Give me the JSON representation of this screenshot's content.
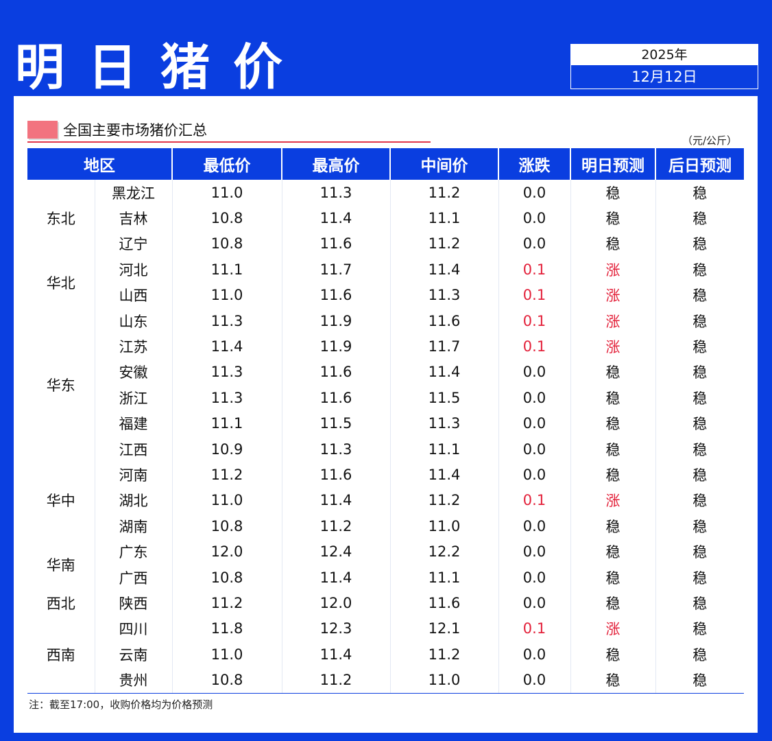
{
  "header": {
    "title": "明日猪价",
    "year": "2025年",
    "date": "12月12日"
  },
  "section": {
    "title": "全国主要市场猪价汇总",
    "unit": "（元/公斤）"
  },
  "table": {
    "columns": [
      "地区",
      "最低价",
      "最高价",
      "中间价",
      "涨跌",
      "明日预测",
      "后日预测"
    ],
    "groups": [
      {
        "region": "东北",
        "rows": [
          {
            "province": "黑龙江",
            "low": "11.0",
            "high": "11.3",
            "mid": "11.2",
            "change": "0.0",
            "tomorrow": "稳",
            "after": "稳",
            "up": false
          },
          {
            "province": "吉林",
            "low": "10.8",
            "high": "11.4",
            "mid": "11.1",
            "change": "0.0",
            "tomorrow": "稳",
            "after": "稳",
            "up": false
          },
          {
            "province": "辽宁",
            "low": "10.8",
            "high": "11.6",
            "mid": "11.2",
            "change": "0.0",
            "tomorrow": "稳",
            "after": "稳",
            "up": false
          }
        ]
      },
      {
        "region": "华北",
        "rows": [
          {
            "province": "河北",
            "low": "11.1",
            "high": "11.7",
            "mid": "11.4",
            "change": "0.1",
            "tomorrow": "涨",
            "after": "稳",
            "up": true
          },
          {
            "province": "山西",
            "low": "11.0",
            "high": "11.6",
            "mid": "11.3",
            "change": "0.1",
            "tomorrow": "涨",
            "after": "稳",
            "up": true
          }
        ]
      },
      {
        "region": "华东",
        "rows": [
          {
            "province": "山东",
            "low": "11.3",
            "high": "11.9",
            "mid": "11.6",
            "change": "0.1",
            "tomorrow": "涨",
            "after": "稳",
            "up": true
          },
          {
            "province": "江苏",
            "low": "11.4",
            "high": "11.9",
            "mid": "11.7",
            "change": "0.1",
            "tomorrow": "涨",
            "after": "稳",
            "up": true
          },
          {
            "province": "安徽",
            "low": "11.3",
            "high": "11.6",
            "mid": "11.4",
            "change": "0.0",
            "tomorrow": "稳",
            "after": "稳",
            "up": false
          },
          {
            "province": "浙江",
            "low": "11.3",
            "high": "11.6",
            "mid": "11.5",
            "change": "0.0",
            "tomorrow": "稳",
            "after": "稳",
            "up": false
          },
          {
            "province": "福建",
            "low": "11.1",
            "high": "11.5",
            "mid": "11.3",
            "change": "0.0",
            "tomorrow": "稳",
            "after": "稳",
            "up": false
          },
          {
            "province": "江西",
            "low": "10.9",
            "high": "11.3",
            "mid": "11.1",
            "change": "0.0",
            "tomorrow": "稳",
            "after": "稳",
            "up": false
          }
        ]
      },
      {
        "region": "华中",
        "rows": [
          {
            "province": "河南",
            "low": "11.2",
            "high": "11.6",
            "mid": "11.4",
            "change": "0.0",
            "tomorrow": "稳",
            "after": "稳",
            "up": false
          },
          {
            "province": "湖北",
            "low": "11.0",
            "high": "11.4",
            "mid": "11.2",
            "change": "0.1",
            "tomorrow": "涨",
            "after": "稳",
            "up": true
          },
          {
            "province": "湖南",
            "low": "10.8",
            "high": "11.2",
            "mid": "11.0",
            "change": "0.0",
            "tomorrow": "稳",
            "after": "稳",
            "up": false
          }
        ]
      },
      {
        "region": "华南",
        "rows": [
          {
            "province": "广东",
            "low": "12.0",
            "high": "12.4",
            "mid": "12.2",
            "change": "0.0",
            "tomorrow": "稳",
            "after": "稳",
            "up": false
          },
          {
            "province": "广西",
            "low": "10.8",
            "high": "11.4",
            "mid": "11.1",
            "change": "0.0",
            "tomorrow": "稳",
            "after": "稳",
            "up": false
          }
        ]
      },
      {
        "region": "西北",
        "rows": [
          {
            "province": "陕西",
            "low": "11.2",
            "high": "12.0",
            "mid": "11.6",
            "change": "0.0",
            "tomorrow": "稳",
            "after": "稳",
            "up": false
          }
        ]
      },
      {
        "region": "西南",
        "rows": [
          {
            "province": "四川",
            "low": "11.8",
            "high": "12.3",
            "mid": "12.1",
            "change": "0.1",
            "tomorrow": "涨",
            "after": "稳",
            "up": true
          },
          {
            "province": "云南",
            "low": "11.0",
            "high": "11.4",
            "mid": "11.2",
            "change": "0.0",
            "tomorrow": "稳",
            "after": "稳",
            "up": false
          },
          {
            "province": "贵州",
            "low": "10.8",
            "high": "11.2",
            "mid": "11.0",
            "change": "0.0",
            "tomorrow": "稳",
            "after": "稳",
            "up": false
          }
        ]
      }
    ]
  },
  "note": "注：截至17:00，收购价格均为价格预测",
  "colors": {
    "brand_blue": "#0a3ee0",
    "up_red": "#e3213a",
    "accent_pink": "#f2737f"
  }
}
